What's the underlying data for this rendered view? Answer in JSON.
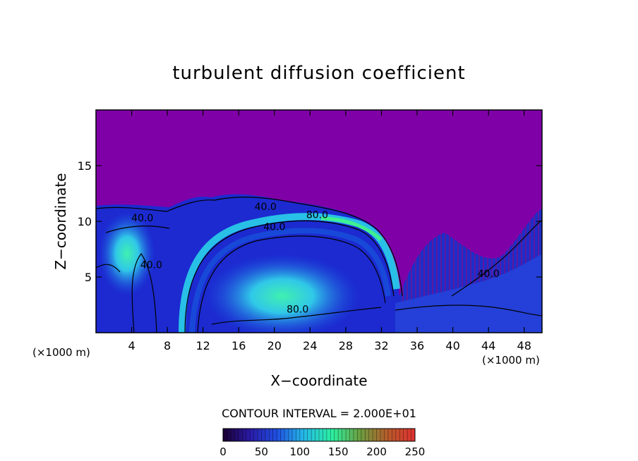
{
  "chart_data": {
    "type": "heatmap",
    "title": "turbulent diffusion coefficient",
    "xlabel": "X−coordinate",
    "ylabel": "Z−coordinate",
    "x_unit_left": "(×1000 m)",
    "x_unit_right": "(×1000 m)",
    "xlim": [
      0,
      50
    ],
    "ylim": [
      0,
      20
    ],
    "x_ticks": [
      4,
      8,
      12,
      16,
      20,
      24,
      28,
      32,
      36,
      40,
      44,
      48
    ],
    "y_ticks": [
      5,
      10,
      15
    ],
    "contour_interval_text": "CONTOUR INTERVAL = 2.000E+01",
    "contour_labels": [
      {
        "text": "40.0",
        "x": 5.2,
        "y": 10.0
      },
      {
        "text": "40.0",
        "x": 6.2,
        "y": 5.8
      },
      {
        "text": "40.0",
        "x": 19.0,
        "y": 11.0
      },
      {
        "text": "80.0",
        "x": 24.8,
        "y": 10.3
      },
      {
        "text": "40.0",
        "x": 20.0,
        "y": 9.2
      },
      {
        "text": "80.0",
        "x": 22.6,
        "y": 1.8
      },
      {
        "text": "40.0",
        "x": 44.0,
        "y": 5.0
      }
    ],
    "colorbar": {
      "min": 0,
      "max": 250,
      "ticks": [
        0,
        50,
        100,
        150,
        200,
        250
      ],
      "colors": [
        "#1a0030",
        "#2a1aa8",
        "#1f4fe0",
        "#24b8e8",
        "#2cf0a0",
        "#6aa040",
        "#b85a2a",
        "#e03030"
      ]
    },
    "background_color": "#8000a8"
  }
}
